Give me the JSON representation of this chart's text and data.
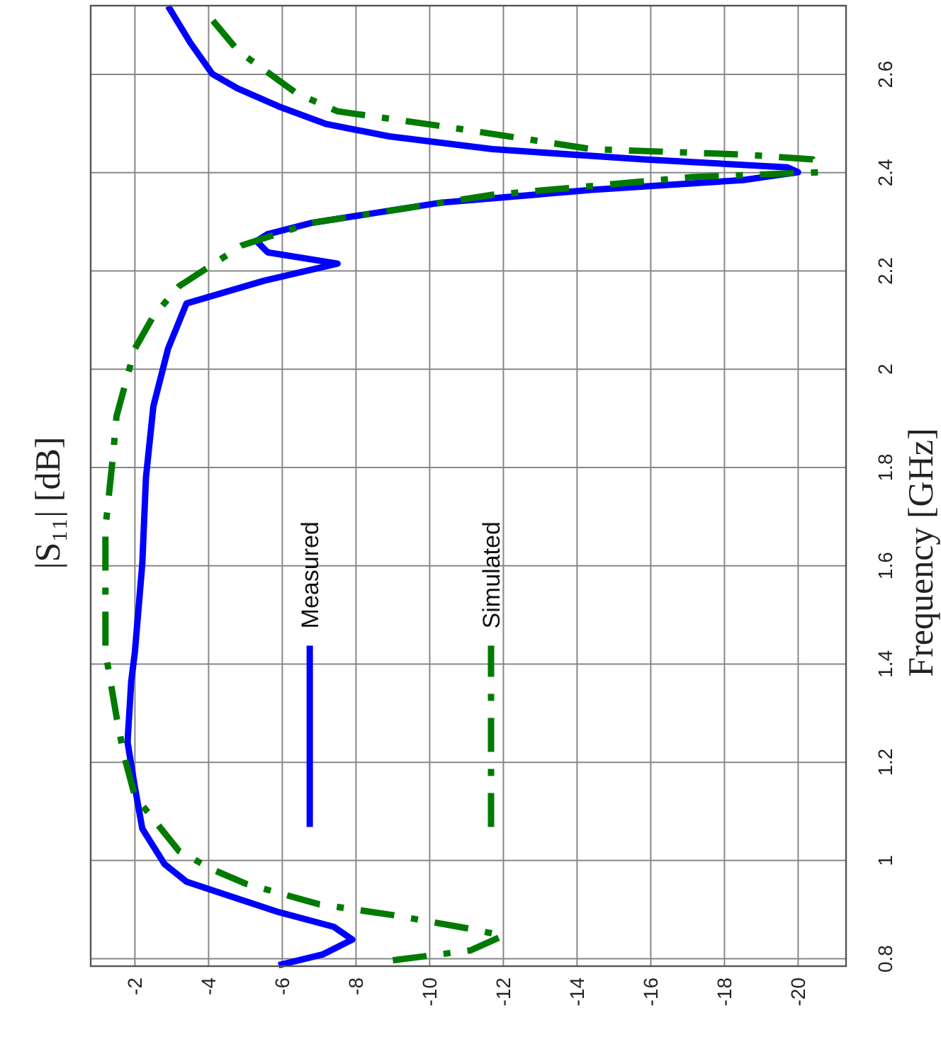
{
  "chart_data": {
    "type": "line",
    "annotations": [
      "|S₁₁| [dB]"
    ],
    "ylabel": "Frequency [GHz]",
    "xlim": [
      -0.8,
      -21.3
    ],
    "ylim": [
      0.785,
      2.74
    ],
    "xticks": [
      -2,
      -4,
      -6,
      -8,
      -10,
      -12,
      -14,
      -16,
      -18,
      -20
    ],
    "yticks": [
      0.8,
      1,
      1.2,
      1.4,
      1.6,
      1.8,
      2,
      2.2,
      2.4,
      2.6
    ],
    "grid": true,
    "legend": "left",
    "marker": "none",
    "series": [
      {
        "name": "Measured",
        "color": "#0000ff",
        "line_style": "solid",
        "values": [
          0.787,
          0.809,
          0.839,
          0.865,
          0.895,
          0.932,
          0.957,
          0.993,
          1.065,
          1.149,
          1.241,
          1.365,
          1.425,
          1.604,
          1.78,
          1.924,
          2.042,
          2.134,
          2.18,
          2.215,
          2.238,
          2.261,
          2.275,
          2.298,
          2.339,
          2.365,
          2.385,
          2.401,
          2.411,
          2.427,
          2.448,
          2.474,
          2.499,
          2.535,
          2.571,
          2.601,
          2.665,
          2.739
        ],
        "x": [
          -5.9,
          -7.1,
          -7.9,
          -7.4,
          -5.9,
          -4.4,
          -3.4,
          -2.8,
          -2.2,
          -2.0,
          -1.8,
          -1.9,
          -2.0,
          -2.2,
          -2.3,
          -2.5,
          -2.9,
          -3.4,
          -5.5,
          -7.5,
          -5.6,
          -5.3,
          -5.6,
          -6.8,
          -10.3,
          -14.4,
          -18.5,
          -20.0,
          -19.7,
          -15.8,
          -11.7,
          -8.9,
          -7.2,
          -5.9,
          -4.8,
          -4.1,
          -3.5,
          -2.9
        ]
      },
      {
        "name": "Simulated",
        "color": "#007a00",
        "line_style": "dashed",
        "values": [
          0.797,
          0.817,
          0.847,
          0.861,
          0.889,
          0.911,
          0.953,
          0.982,
          1.019,
          1.131,
          1.215,
          1.293,
          1.425,
          1.676,
          1.82,
          1.904,
          2.042,
          2.108,
          2.169,
          2.252,
          2.298,
          2.355,
          2.391,
          2.401,
          2.427,
          2.437,
          2.448,
          2.495,
          2.525,
          2.561,
          2.648,
          2.711
        ],
        "x": [
          -9.0,
          -11.1,
          -12.0,
          -11.1,
          -9.0,
          -7.0,
          -5.0,
          -4.1,
          -3.2,
          -2.0,
          -1.7,
          -1.5,
          -1.2,
          -1.2,
          -1.4,
          -1.5,
          -2.0,
          -2.5,
          -3.2,
          -4.9,
          -6.8,
          -11.7,
          -17.1,
          -20.6,
          -20.4,
          -18.5,
          -14.4,
          -10.3,
          -7.5,
          -6.4,
          -4.8,
          -4.1
        ]
      }
    ]
  }
}
